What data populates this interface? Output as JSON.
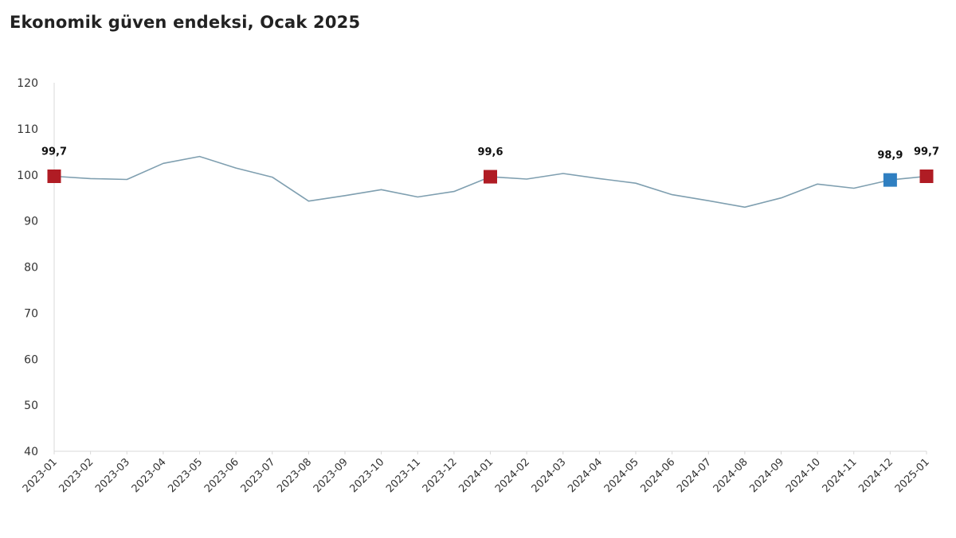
{
  "chart_data": {
    "type": "line",
    "title": "Ekonomik güven endeksi, Ocak 2025",
    "xlabel": "",
    "ylabel": "",
    "ylim": [
      40,
      120
    ],
    "yticks": [
      40,
      50,
      60,
      70,
      80,
      90,
      100,
      110,
      120
    ],
    "grid": false,
    "x": [
      "2023-01",
      "2023-02",
      "2023-03",
      "2023-04",
      "2023-05",
      "2023-06",
      "2023-07",
      "2023-08",
      "2023-09",
      "2023-10",
      "2023-11",
      "2023-12",
      "2024-01",
      "2024-02",
      "2024-03",
      "2024-04",
      "2024-05",
      "2024-06",
      "2024-07",
      "2024-08",
      "2024-09",
      "2024-10",
      "2024-11",
      "2024-12",
      "2025-01"
    ],
    "series": [
      {
        "values": [
          99.7,
          99.2,
          99.0,
          102.5,
          104.0,
          101.5,
          99.5,
          94.3,
          95.5,
          96.8,
          95.2,
          96.4,
          99.6,
          99.1,
          100.3,
          99.2,
          98.2,
          95.7,
          94.4,
          93.0,
          95.0,
          98.0,
          97.1,
          98.9,
          99.7
        ],
        "color": "#7f9fb0"
      }
    ],
    "highlights": [
      {
        "index": 0,
        "label": "99,7",
        "color": "#b01c24"
      },
      {
        "index": 12,
        "label": "99,6",
        "color": "#b01c24"
      },
      {
        "index": 23,
        "label": "98,9",
        "color": "#2f7fc1"
      },
      {
        "index": 24,
        "label": "99,7",
        "color": "#b01c24"
      }
    ],
    "axis_color": "#d9d9d9"
  }
}
